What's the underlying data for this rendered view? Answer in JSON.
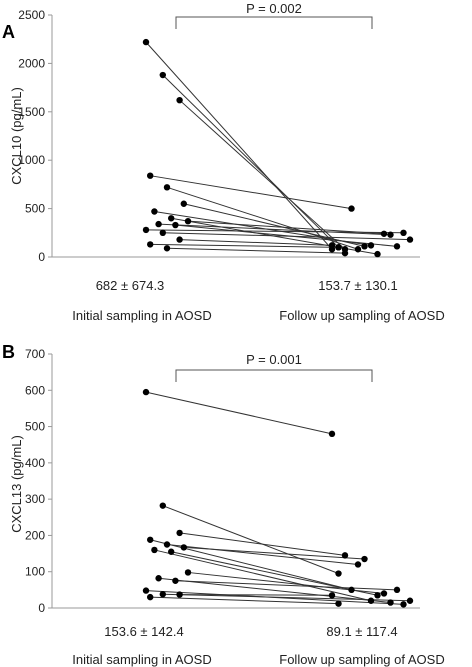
{
  "chart_data": [
    {
      "type": "scatter",
      "panel_label": "A",
      "ylabel": "CXCL10 (pg/mL)",
      "ylim": [
        0,
        2500
      ],
      "yticks": [
        0,
        500,
        1000,
        1500,
        2000,
        2500
      ],
      "categories": [
        "Initial sampling in AOSD",
        "Follow up sampling of AOSD"
      ],
      "stats": [
        "682 ± 674.3",
        "153.7 ± 130.1"
      ],
      "p_value": "P = 0.002",
      "pairs": [
        {
          "initial": 2220,
          "followup": 80
        },
        {
          "initial": 1880,
          "followup": 100
        },
        {
          "initial": 1620,
          "followup": 80
        },
        {
          "initial": 840,
          "followup": 500
        },
        {
          "initial": 720,
          "followup": 80
        },
        {
          "initial": 550,
          "followup": 110
        },
        {
          "initial": 470,
          "followup": 120
        },
        {
          "initial": 400,
          "followup": 30
        },
        {
          "initial": 370,
          "followup": 240
        },
        {
          "initial": 340,
          "followup": 230
        },
        {
          "initial": 330,
          "followup": 110
        },
        {
          "initial": 280,
          "followup": 250
        },
        {
          "initial": 250,
          "followup": 180
        },
        {
          "initial": 180,
          "followup": 120
        },
        {
          "initial": 130,
          "followup": 100
        },
        {
          "initial": 90,
          "followup": 40
        }
      ]
    },
    {
      "type": "scatter",
      "panel_label": "B",
      "ylabel": "CXCL13 (pg/mL)",
      "ylim": [
        0,
        700
      ],
      "yticks": [
        0,
        100,
        200,
        300,
        400,
        500,
        600,
        700
      ],
      "categories": [
        "Initial sampling in AOSD",
        "Follow up sampling of AOSD"
      ],
      "stats": [
        "153.6 ± 142.4",
        "89.1 ± 117.4"
      ],
      "p_value": "P = 0.001",
      "pairs": [
        {
          "initial": 595,
          "followup": 480
        },
        {
          "initial": 282,
          "followup": 95
        },
        {
          "initial": 207,
          "followup": 145
        },
        {
          "initial": 188,
          "followup": 50
        },
        {
          "initial": 175,
          "followup": 120
        },
        {
          "initial": 167,
          "followup": 135
        },
        {
          "initial": 160,
          "followup": 20
        },
        {
          "initial": 155,
          "followup": 35
        },
        {
          "initial": 98,
          "followup": 40
        },
        {
          "initial": 82,
          "followup": 15
        },
        {
          "initial": 75,
          "followup": 50
        },
        {
          "initial": 48,
          "followup": 10
        },
        {
          "initial": 38,
          "followup": 20
        },
        {
          "initial": 37,
          "followup": 35
        },
        {
          "initial": 30,
          "followup": 12
        }
      ]
    }
  ]
}
